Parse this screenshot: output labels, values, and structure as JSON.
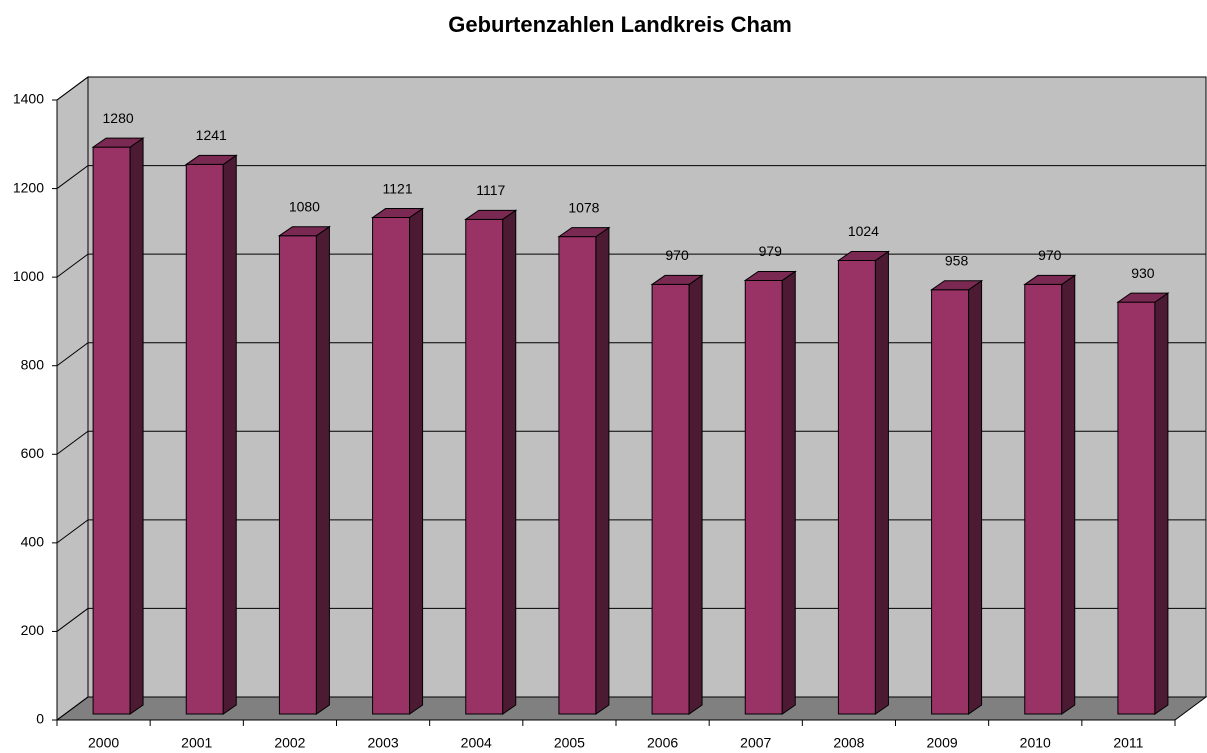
{
  "chart_data": {
    "type": "bar3d",
    "title": "Geburtenzahlen Landkreis Cham",
    "categories": [
      "2000",
      "2001",
      "2002",
      "2003",
      "2004",
      "2005",
      "2006",
      "2007",
      "2008",
      "2009",
      "2010",
      "2011"
    ],
    "values": [
      1280,
      1241,
      1080,
      1121,
      1117,
      1078,
      970,
      979,
      1024,
      958,
      970,
      930
    ],
    "color": "#993366",
    "ylim": [
      0,
      1400
    ],
    "yticks": [
      0,
      200,
      400,
      600,
      800,
      1000,
      1200,
      1400
    ],
    "grid": true
  }
}
